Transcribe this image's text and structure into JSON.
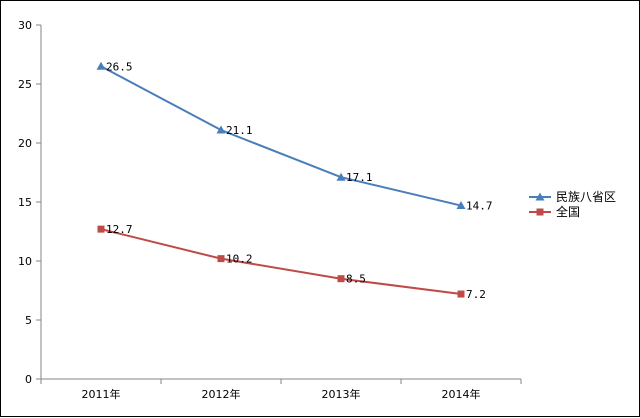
{
  "chart_data": {
    "type": "line",
    "categories": [
      "2011年",
      "2012年",
      "2013年",
      "2014年"
    ],
    "series": [
      {
        "name": "民族八省区",
        "values": [
          26.5,
          21.1,
          17.1,
          14.7
        ],
        "color": "#4a7ebb",
        "marker": "triangle"
      },
      {
        "name": "全国",
        "values": [
          12.7,
          10.2,
          8.5,
          7.2
        ],
        "color": "#be4b48",
        "marker": "square"
      }
    ],
    "data_labels": [
      [
        "26.5",
        "21.1",
        "17.1",
        "14.7"
      ],
      [
        "12.7",
        "10.2",
        "8.5",
        "7.2"
      ]
    ],
    "y_ticks": [
      0,
      5,
      10,
      15,
      20,
      25,
      30
    ],
    "ylim": [
      0,
      30
    ],
    "title": "",
    "xlabel": "",
    "ylabel": "",
    "grid": false,
    "legend_position": "right"
  }
}
